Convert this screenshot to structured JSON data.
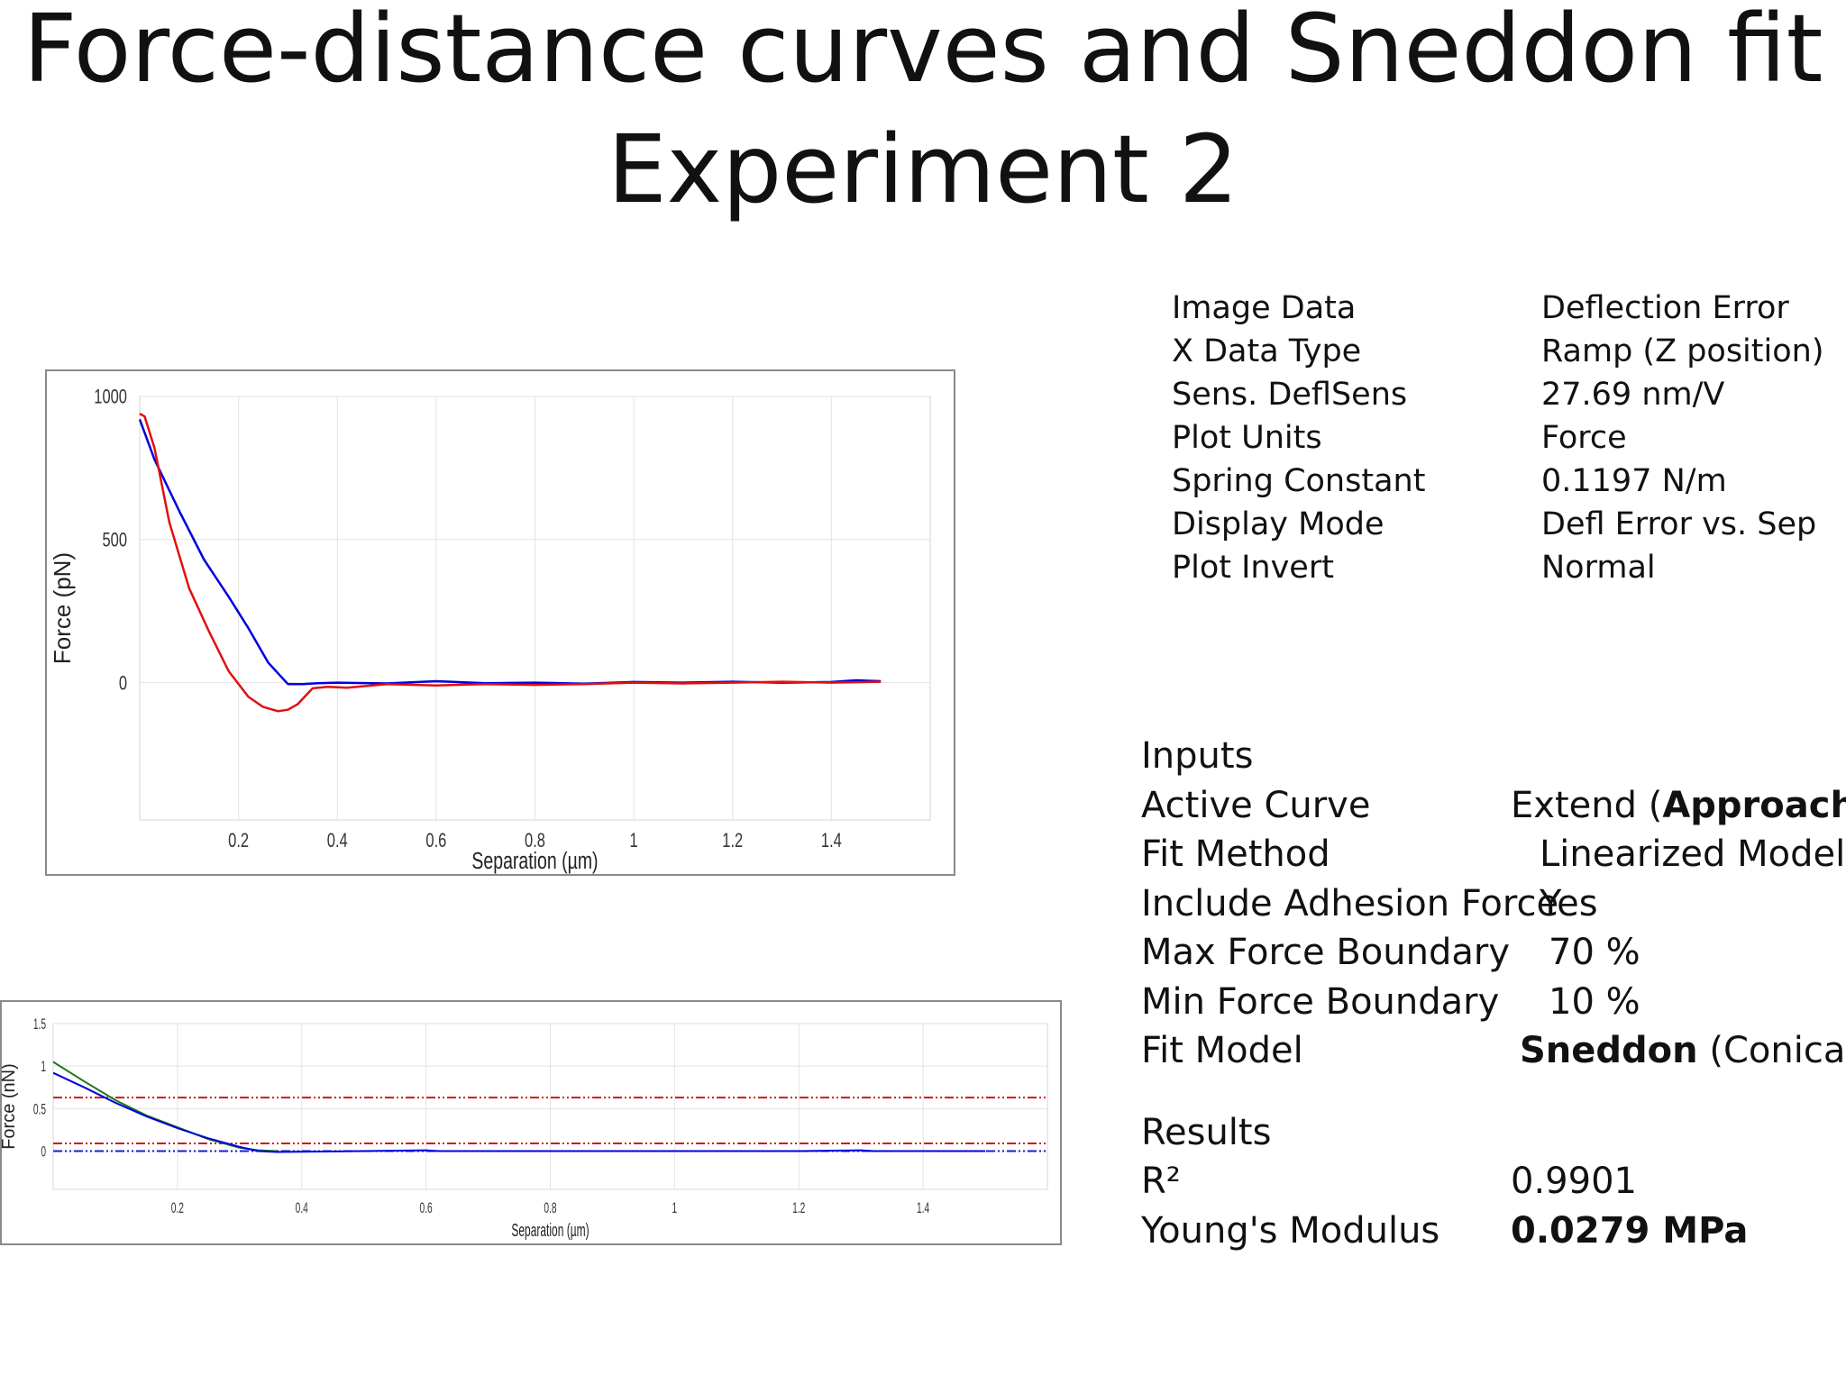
{
  "title": {
    "line1": "Force-distance curves and Sneddon fit",
    "line2": "Experiment 2"
  },
  "settings": [
    {
      "label": "Image Data",
      "value": "Deflection Error"
    },
    {
      "label": "X Data Type",
      "value": "Ramp (Z position)"
    },
    {
      "label": "Sens. DeflSens",
      "value": "27.69 nm/V"
    },
    {
      "label": "Plot Units",
      "value": "Force"
    },
    {
      "label": "Spring Constant",
      "value": "0.1197 N/m"
    },
    {
      "label": "Display Mode",
      "value": "Defl Error vs. Sep"
    },
    {
      "label": "Plot Invert",
      "value": "Normal"
    }
  ],
  "inputs": {
    "heading": "Inputs",
    "active_curve_label": "Active Curve",
    "active_curve_value_prefix": "Extend (",
    "active_curve_value_bold": "Approach",
    "active_curve_value_suffix": ")",
    "fit_method_label": "Fit Method",
    "fit_method_value": "Linearized Model",
    "adhesion_label": "Include Adhesion Force",
    "adhesion_value": "Yes",
    "max_boundary_label": "Max Force Boundary",
    "max_boundary_value": "70 %",
    "min_boundary_label": "Min Force Boundary",
    "min_boundary_value": "10 %",
    "fit_model_label": "Fit Model",
    "fit_model_value_bold": "Sneddon",
    "fit_model_value_rest": " (Conical)"
  },
  "results": {
    "heading": "Results",
    "r2_label": "R²",
    "r2_value": "0.9901",
    "modulus_label": "Young's Modulus",
    "modulus_value": "0.0279 MPa"
  },
  "colors": {
    "extend": "#0000dd",
    "retract": "#e01010",
    "fit": "#1a7a1a",
    "boundary": "#d01818",
    "baseline": "#1a1acc",
    "grid": "#e2e2e2"
  },
  "chart_data": [
    {
      "type": "line",
      "xlabel": "Separation (µm)",
      "ylabel": "Force (pN)",
      "xlim": [
        0,
        1.6
      ],
      "ylim": [
        -480,
        1000
      ],
      "xticks": [
        0.2,
        0.4,
        0.6,
        0.8,
        1,
        1.2,
        1.4
      ],
      "xtick_labels": [
        "0.2",
        "0.4",
        "0.6",
        "0.8",
        "1",
        "1.2",
        "1.4"
      ],
      "yticks": [
        0,
        500,
        1000
      ],
      "ytick_labels": [
        "0",
        "500",
        "1000"
      ],
      "grid": true,
      "series": [
        {
          "color_key": "extend",
          "x": [
            0.0,
            0.03,
            0.08,
            0.13,
            0.18,
            0.22,
            0.26,
            0.3,
            0.33,
            0.36,
            0.4,
            0.5,
            0.6,
            0.7,
            0.8,
            0.9,
            1.0,
            1.1,
            1.2,
            1.3,
            1.4,
            1.45,
            1.5
          ],
          "y": [
            920,
            780,
            600,
            430,
            300,
            190,
            70,
            -5,
            -5,
            -2,
            0,
            -3,
            5,
            -2,
            0,
            -4,
            2,
            0,
            3,
            0,
            2,
            8,
            5
          ]
        },
        {
          "color_key": "retract",
          "x": [
            0.0,
            0.01,
            0.03,
            0.06,
            0.1,
            0.14,
            0.18,
            0.22,
            0.25,
            0.28,
            0.3,
            0.32,
            0.35,
            0.38,
            0.42,
            0.5,
            0.6,
            0.7,
            0.8,
            0.9,
            1.0,
            1.1,
            1.2,
            1.3,
            1.4,
            1.5
          ],
          "y": [
            940,
            930,
            820,
            560,
            330,
            180,
            40,
            -50,
            -85,
            -100,
            -95,
            -75,
            -20,
            -15,
            -18,
            -5,
            -10,
            -5,
            -8,
            -5,
            0,
            -3,
            0,
            3,
            0,
            3
          ]
        }
      ]
    },
    {
      "type": "line",
      "xlabel": "Separation (µm)",
      "ylabel": "Force (nN)",
      "xlim": [
        0,
        1.6
      ],
      "ylim": [
        -0.45,
        1.5
      ],
      "xticks": [
        0.2,
        0.4,
        0.6,
        0.8,
        1,
        1.2,
        1.4
      ],
      "xtick_labels": [
        "0.2",
        "0.4",
        "0.6",
        "0.8",
        "1",
        "1.2",
        "1.4"
      ],
      "yticks": [
        0,
        0.5,
        1,
        1.5
      ],
      "ytick_labels": [
        "0",
        "0.5",
        "1",
        "1.5"
      ],
      "grid": true,
      "hlines": [
        {
          "y": 0.63,
          "color_key": "boundary"
        },
        {
          "y": 0.09,
          "color_key": "boundary"
        },
        {
          "y": 0.0,
          "color_key": "baseline"
        }
      ],
      "series": [
        {
          "color_key": "fit",
          "x": [
            0.0,
            0.05,
            0.1,
            0.15,
            0.2,
            0.25,
            0.3,
            0.33,
            0.36
          ],
          "y": [
            1.05,
            0.82,
            0.6,
            0.42,
            0.28,
            0.14,
            0.04,
            0.01,
            0.0
          ]
        },
        {
          "color_key": "extend",
          "x": [
            0.0,
            0.05,
            0.1,
            0.15,
            0.2,
            0.25,
            0.3,
            0.33,
            0.36,
            0.5,
            0.6,
            0.62,
            0.8,
            1.0,
            1.2,
            1.3,
            1.32,
            1.5
          ],
          "y": [
            0.92,
            0.75,
            0.57,
            0.41,
            0.27,
            0.15,
            0.05,
            0.0,
            -0.01,
            0.0,
            0.01,
            0.0,
            0.0,
            0.0,
            0.0,
            0.01,
            0.0,
            0.0
          ]
        }
      ]
    }
  ]
}
